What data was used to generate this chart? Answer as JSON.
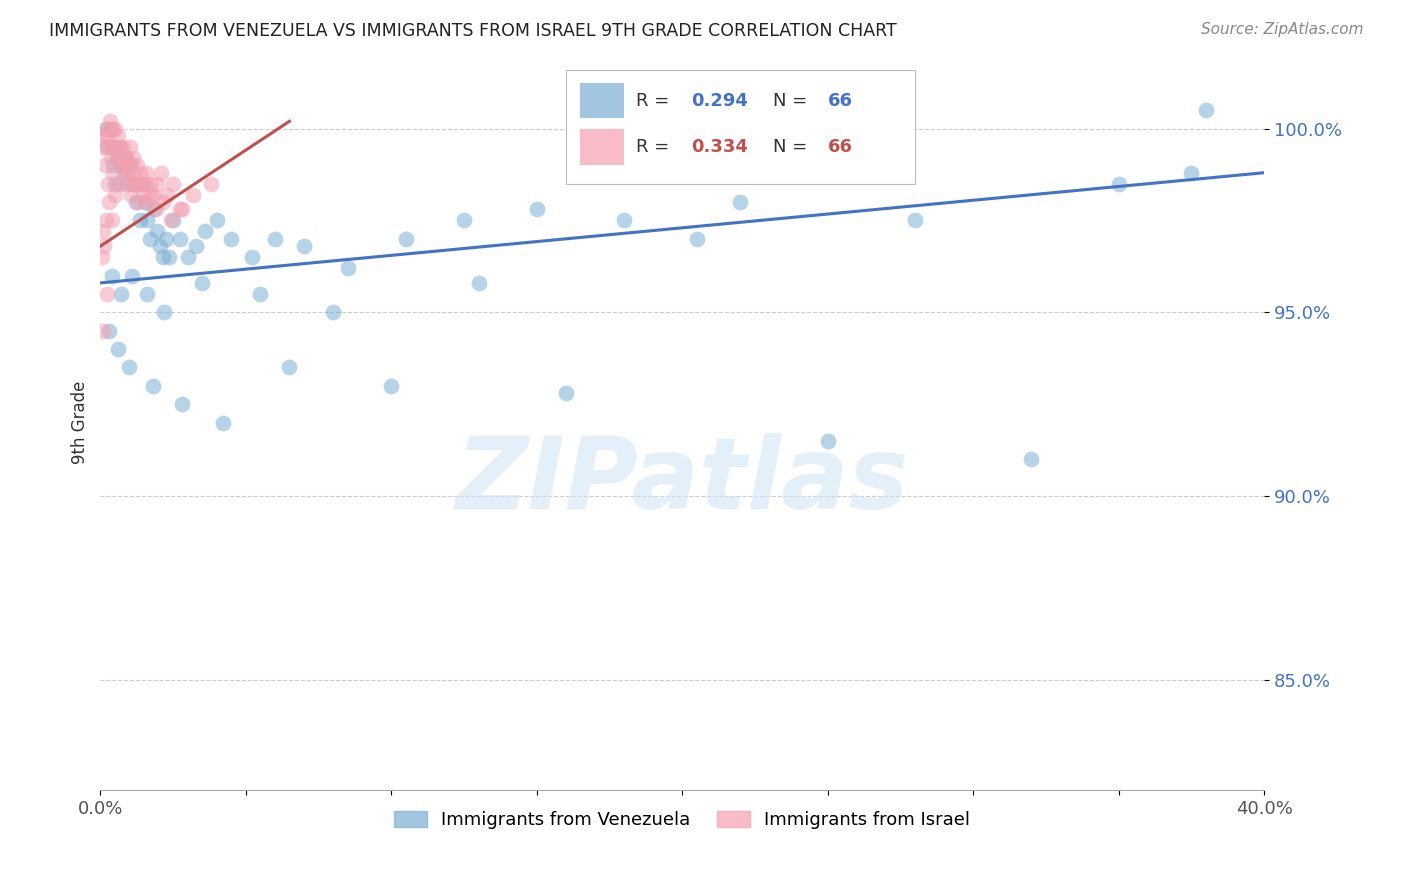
{
  "title": "IMMIGRANTS FROM VENEZUELA VS IMMIGRANTS FROM ISRAEL 9TH GRADE CORRELATION CHART",
  "source": "Source: ZipAtlas.com",
  "ylabel": "9th Grade",
  "xlim": [
    0.0,
    40.0
  ],
  "ylim": [
    82.0,
    102.0
  ],
  "yticks": [
    85.0,
    90.0,
    95.0,
    100.0
  ],
  "ytick_labels": [
    "85.0%",
    "90.0%",
    "95.0%",
    "100.0%"
  ],
  "xticks": [
    0.0,
    5.0,
    10.0,
    15.0,
    20.0,
    25.0,
    30.0,
    35.0,
    40.0
  ],
  "xtick_labels": [
    "0.0%",
    "",
    "",
    "",
    "",
    "",
    "",
    "",
    "40.0%"
  ],
  "color_venezuela": "#7bafd4",
  "color_israel": "#f4a0b0",
  "color_line_venezuela": "#4472c4",
  "color_line_israel": "#c0504d",
  "ven_line_x0": 0.0,
  "ven_line_x1": 40.0,
  "ven_line_y0": 95.8,
  "ven_line_y1": 98.8,
  "isr_line_x0": 0.0,
  "isr_line_x1": 6.5,
  "isr_line_y0": 96.8,
  "isr_line_y1": 100.2,
  "venezuela_x": [
    0.18,
    0.28,
    0.38,
    0.45,
    0.52,
    0.58,
    0.65,
    0.72,
    0.8,
    0.88,
    0.95,
    1.05,
    1.15,
    1.22,
    1.35,
    1.45,
    1.55,
    1.62,
    1.72,
    1.85,
    1.95,
    2.05,
    2.15,
    2.25,
    2.35,
    2.5,
    2.75,
    3.0,
    3.3,
    3.6,
    4.0,
    4.5,
    5.2,
    6.0,
    7.0,
    8.5,
    10.5,
    12.5,
    15.0,
    18.0,
    22.0,
    28.0,
    35.0,
    37.5,
    0.4,
    0.7,
    1.1,
    1.6,
    2.2,
    3.5,
    5.5,
    8.0,
    13.0,
    20.5,
    0.3,
    0.6,
    1.0,
    1.8,
    2.8,
    4.2,
    6.5,
    10.0,
    16.0,
    25.0,
    32.0,
    38.0
  ],
  "venezuela_y": [
    100.0,
    99.5,
    100.0,
    99.0,
    98.5,
    99.2,
    99.5,
    99.0,
    98.8,
    99.2,
    98.5,
    99.0,
    98.5,
    98.0,
    97.5,
    98.5,
    98.0,
    97.5,
    97.0,
    97.8,
    97.2,
    96.8,
    96.5,
    97.0,
    96.5,
    97.5,
    97.0,
    96.5,
    96.8,
    97.2,
    97.5,
    97.0,
    96.5,
    97.0,
    96.8,
    96.2,
    97.0,
    97.5,
    97.8,
    97.5,
    98.0,
    97.5,
    98.5,
    98.8,
    96.0,
    95.5,
    96.0,
    95.5,
    95.0,
    95.8,
    95.5,
    95.0,
    95.8,
    97.0,
    94.5,
    94.0,
    93.5,
    93.0,
    92.5,
    92.0,
    93.5,
    93.0,
    92.8,
    91.5,
    91.0,
    100.5
  ],
  "israel_x": [
    0.08,
    0.12,
    0.18,
    0.22,
    0.28,
    0.32,
    0.38,
    0.42,
    0.48,
    0.52,
    0.58,
    0.62,
    0.68,
    0.72,
    0.78,
    0.82,
    0.88,
    0.92,
    0.98,
    1.02,
    1.08,
    1.12,
    1.18,
    1.25,
    1.32,
    1.38,
    1.45,
    1.52,
    1.62,
    1.72,
    1.82,
    1.95,
    2.1,
    2.3,
    2.5,
    2.8,
    3.2,
    3.8,
    0.15,
    0.25,
    0.35,
    0.45,
    0.55,
    0.65,
    0.75,
    0.85,
    0.95,
    1.05,
    1.15,
    1.28,
    1.42,
    1.58,
    1.75,
    1.92,
    2.15,
    2.42,
    2.75,
    0.05,
    0.09,
    0.14,
    0.2,
    0.3,
    0.4,
    0.5,
    0.1,
    0.22
  ],
  "israel_y": [
    99.5,
    99.8,
    100.0,
    99.5,
    99.8,
    100.2,
    99.5,
    100.0,
    99.5,
    100.0,
    99.2,
    99.8,
    99.5,
    99.2,
    99.5,
    99.0,
    99.2,
    98.8,
    99.0,
    99.5,
    98.8,
    99.2,
    98.5,
    99.0,
    98.5,
    98.8,
    98.2,
    98.5,
    98.0,
    98.5,
    98.2,
    98.5,
    98.8,
    98.2,
    98.5,
    97.8,
    98.2,
    98.5,
    99.0,
    98.5,
    99.2,
    98.8,
    99.5,
    98.5,
    99.0,
    98.5,
    98.8,
    98.2,
    98.5,
    98.0,
    98.5,
    98.8,
    98.2,
    97.8,
    98.0,
    97.5,
    97.8,
    96.5,
    97.2,
    96.8,
    97.5,
    98.0,
    97.5,
    98.2,
    94.5,
    95.5
  ],
  "watermark_text": "ZIPatlas",
  "legend_items": [
    {
      "color": "#7bafd4",
      "R": "0.294",
      "N": "66",
      "R_color": "#4472c4"
    },
    {
      "color": "#f4a0b0",
      "R": "0.334",
      "N": "66",
      "R_color": "#c0504d"
    }
  ],
  "bottom_legend": [
    "Immigrants from Venezuela",
    "Immigrants from Israel"
  ]
}
